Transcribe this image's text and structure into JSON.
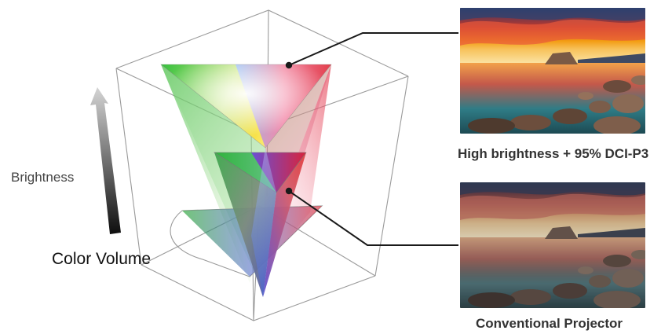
{
  "labels": {
    "brightness": "Brightness",
    "color_volume": "Color Volume",
    "high_caption": "High brightness + 95% DCI-P3",
    "conventional_caption": "Conventional Projector"
  },
  "colors": {
    "connector": "#1a1a1a",
    "cube_edge": "#9a9a9a",
    "arrow_top": "#c8c8c8",
    "arrow_bottom": "#111111"
  },
  "images": {
    "high": {
      "subject": "lake-sunset-photo",
      "variant": "vivid"
    },
    "conventional": {
      "subject": "lake-sunset-photo",
      "variant": "muted"
    }
  }
}
